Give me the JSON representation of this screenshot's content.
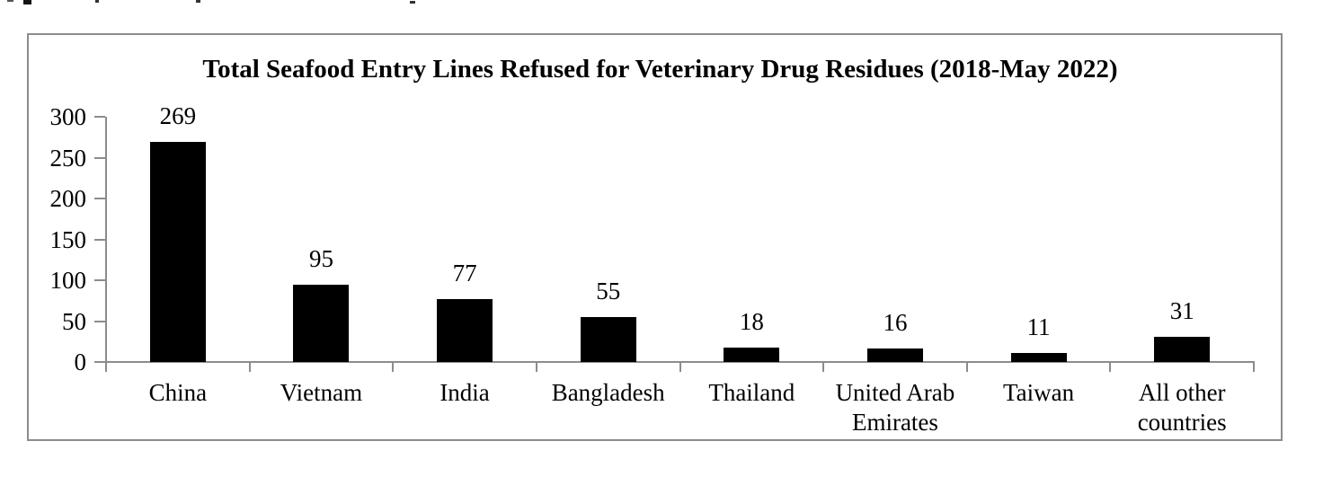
{
  "chart_data": {
    "type": "bar",
    "title": "Total Seafood Entry Lines Refused for Veterinary Drug Residues (2018-May 2022)",
    "categories": [
      "China",
      "Vietnam",
      "India",
      "Bangladesh",
      "Thailand",
      "United Arab Emirates",
      "Taiwan",
      "All other countries"
    ],
    "values": [
      269,
      95,
      77,
      55,
      18,
      16,
      11,
      31
    ],
    "data_labels": [
      "269",
      "95",
      "77",
      "55",
      "18",
      "16",
      "11",
      "31"
    ],
    "xlabel": "",
    "ylabel": "",
    "ylim": [
      0,
      300
    ],
    "yticks": [
      0,
      50,
      100,
      150,
      200,
      250,
      300
    ],
    "grid": false,
    "legend_position": "none",
    "colors": {
      "bar": "#000000",
      "axis": "#8c8c8c",
      "box_border": "#8c8c8c",
      "background": "#ffffff",
      "text": "#000000"
    }
  }
}
